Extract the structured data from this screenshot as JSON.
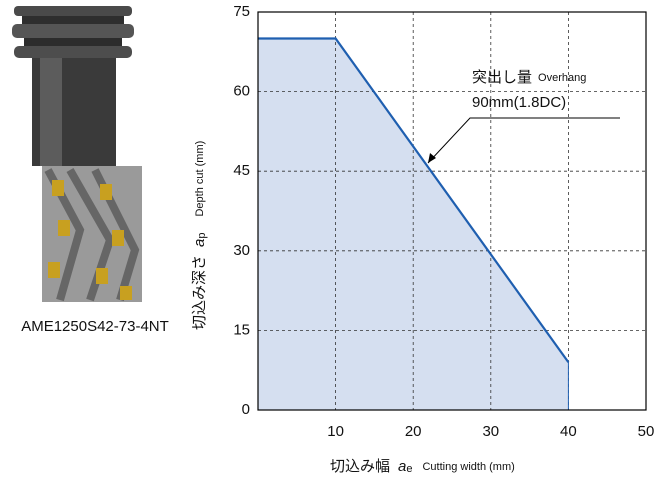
{
  "product_label": "AME1250S42-73-4NT",
  "chart_data": {
    "type": "area",
    "x": [
      0,
      10,
      40,
      40
    ],
    "series": [
      {
        "values": [
          70,
          70,
          9,
          0
        ],
        "color": "#1f5fb0",
        "fill": "#d5dff0"
      }
    ],
    "xlim": [
      0,
      50
    ],
    "ylim": [
      0,
      75
    ],
    "xticks": [
      10,
      20,
      30,
      40,
      50
    ],
    "yticks": [
      0,
      15,
      30,
      45,
      60,
      75
    ],
    "grid": true,
    "x_label": {
      "jp": "切込み幅",
      "symbol": "a",
      "sub": "e",
      "en": "Cutting width (mm)"
    },
    "y_label": {
      "jp": "切込み深さ",
      "symbol": "a",
      "sub": "p",
      "en": "Depth cut (mm)"
    },
    "annotation": {
      "jp": "突出し量",
      "en": "Overhang",
      "value": "90mm(1.8DC)"
    }
  }
}
